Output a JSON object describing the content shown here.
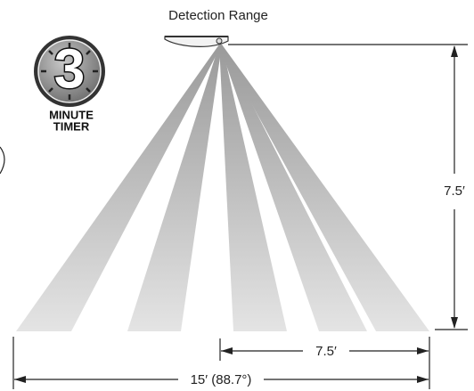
{
  "title": "Detection Range",
  "timer": {
    "number": "3",
    "line1": "MINUTE",
    "line2": "TIMER"
  },
  "dimensions": {
    "height": "7.5′",
    "half_width": "7.5′",
    "full_width": "15′ (88.7°)"
  }
}
